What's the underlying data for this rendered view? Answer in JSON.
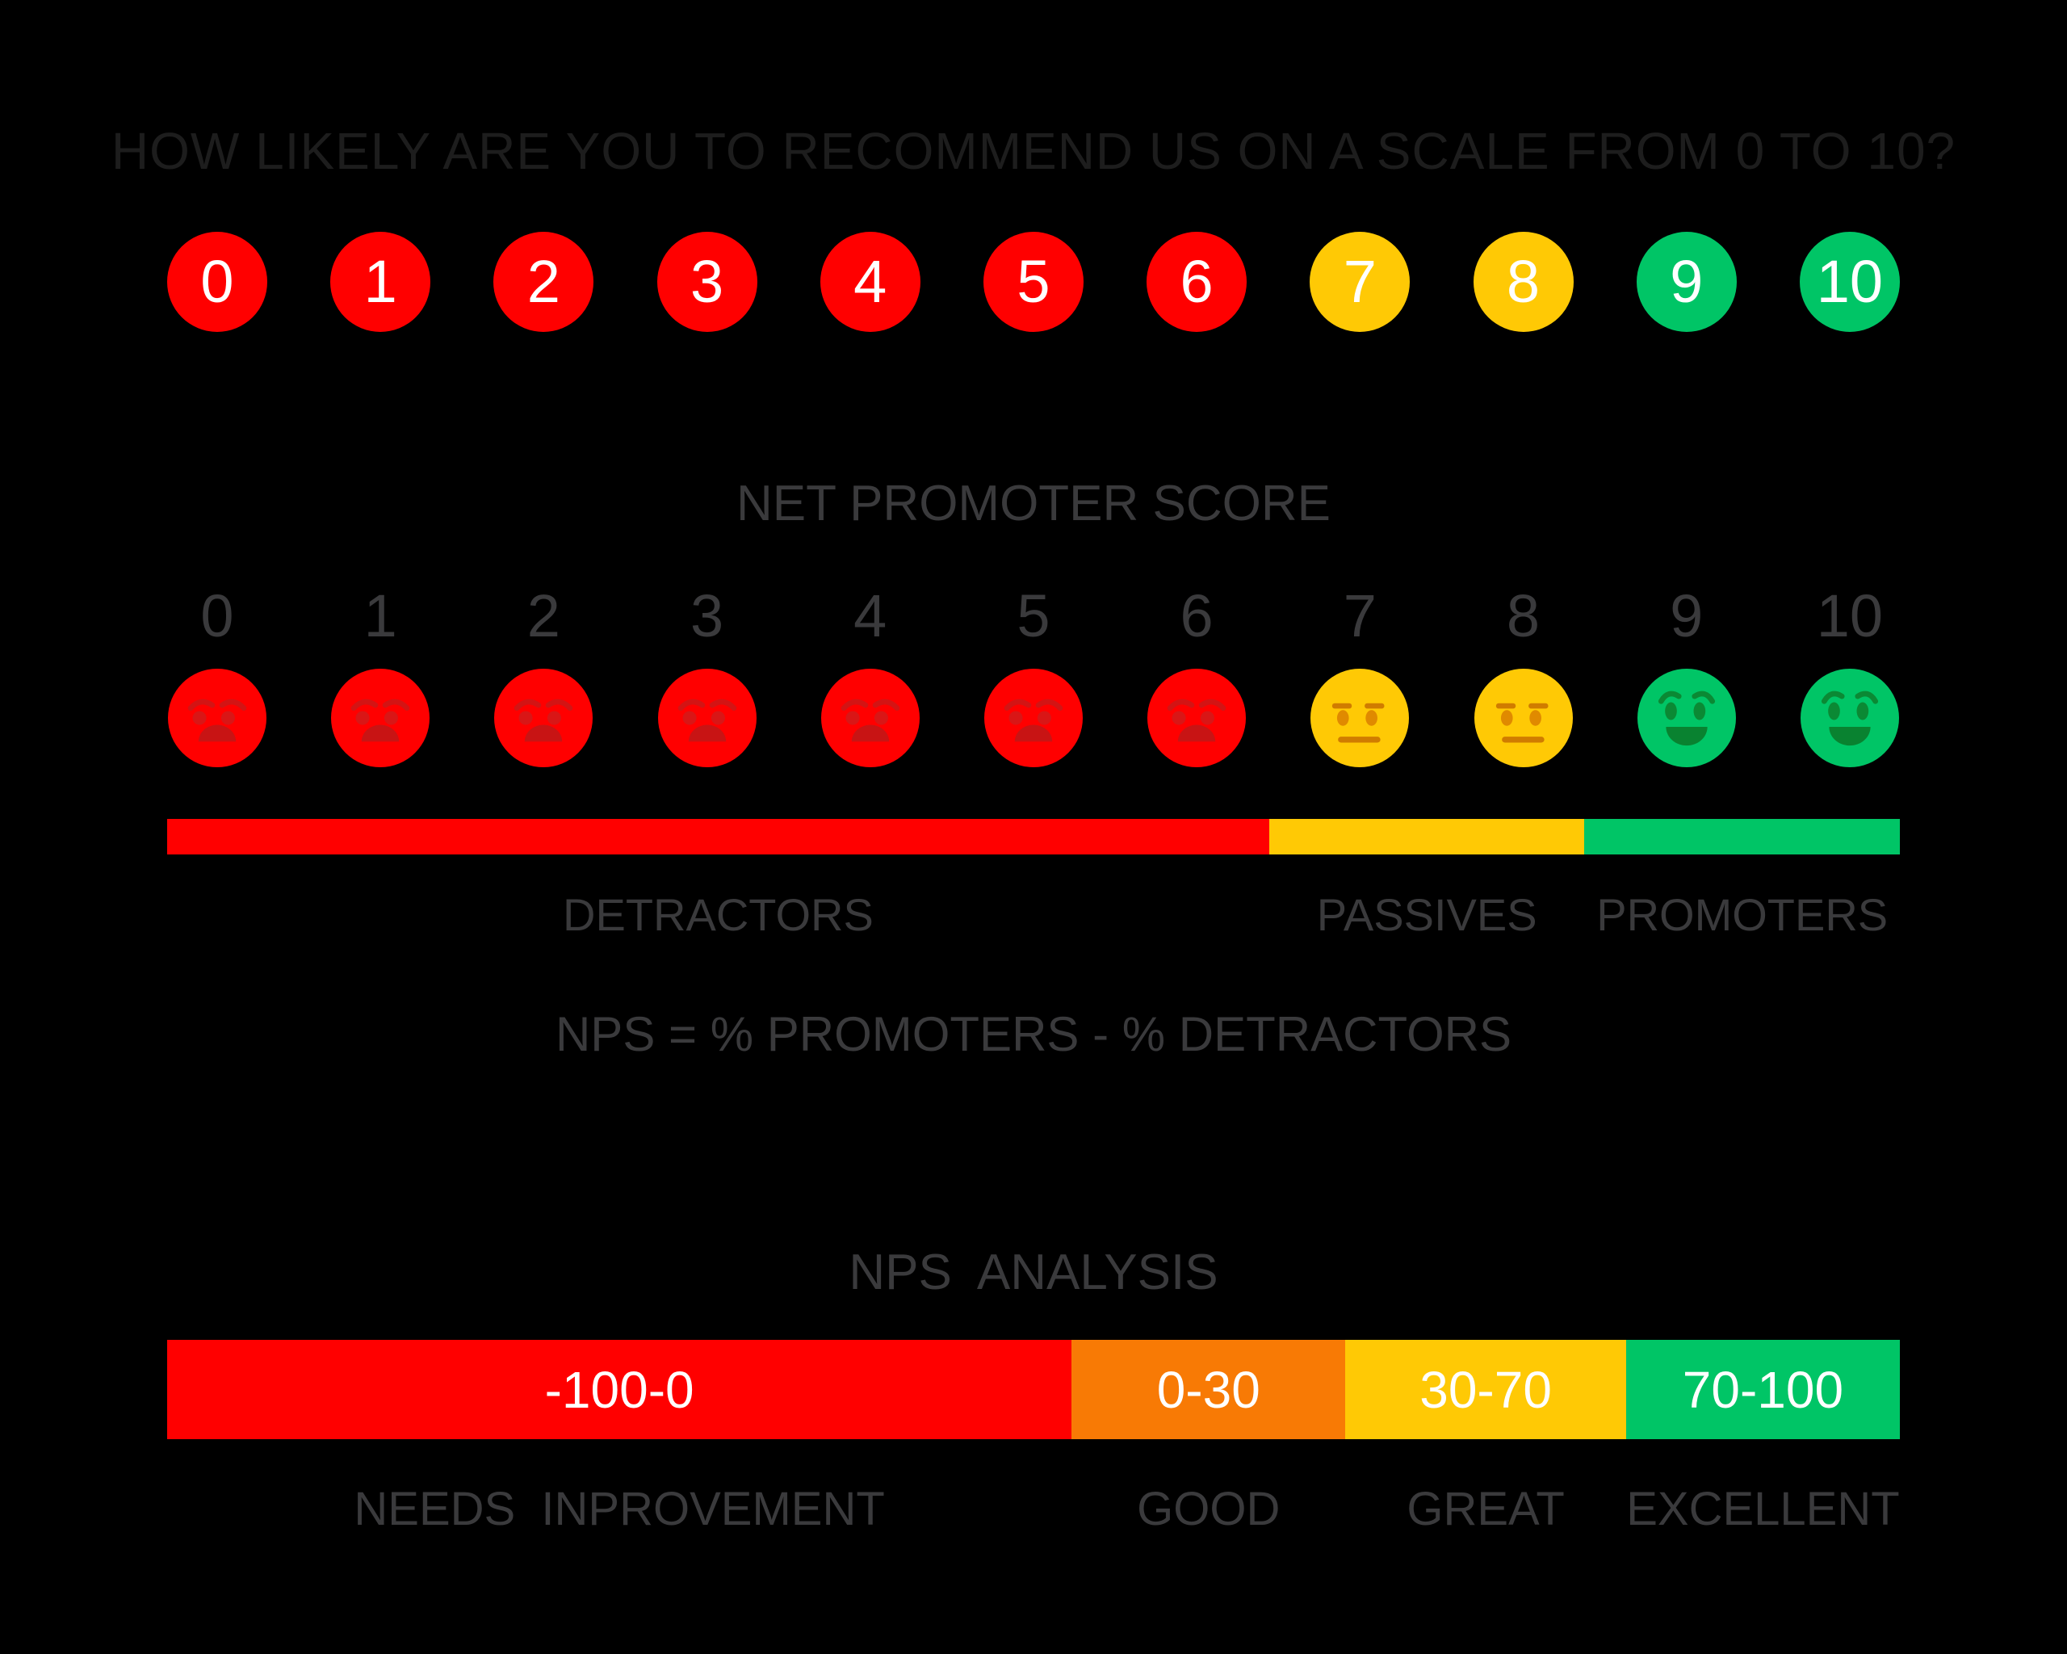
{
  "colors": {
    "background": "#000000",
    "title_text": "#1D1D1D",
    "gray_text": "#3A3A3C",
    "white_text": "#FFFFFF",
    "detractor": "#FF0000",
    "passive": "#FFC905",
    "promoter": "#00C566",
    "good_orange": "#F87A05"
  },
  "faces": {
    "detractor": {
      "expression": "angry",
      "skin": "#FF0000",
      "feature": "#D31414",
      "eye": "#D91616",
      "mouth": "#C81414"
    },
    "passive": {
      "expression": "neutral",
      "skin": "#FFC905",
      "feature": "#D07C00",
      "eye": "#E08A00",
      "mouth": "#D07C00"
    },
    "promoter": {
      "expression": "happy",
      "skin": "#00C566",
      "feature": "#0B8934",
      "eye": "#0B8934",
      "mouth": "#098230"
    }
  },
  "question": {
    "text": "HOW LIKELY ARE YOU TO RECOMMEND US ON A SCALE FROM 0 TO 10?"
  },
  "scale": {
    "items": [
      {
        "value": "0",
        "group": "detractor"
      },
      {
        "value": "1",
        "group": "detractor"
      },
      {
        "value": "2",
        "group": "detractor"
      },
      {
        "value": "3",
        "group": "detractor"
      },
      {
        "value": "4",
        "group": "detractor"
      },
      {
        "value": "5",
        "group": "detractor"
      },
      {
        "value": "6",
        "group": "detractor"
      },
      {
        "value": "7",
        "group": "passive"
      },
      {
        "value": "8",
        "group": "passive"
      },
      {
        "value": "9",
        "group": "promoter"
      },
      {
        "value": "10",
        "group": "promoter"
      }
    ]
  },
  "nps": {
    "heading": "NET PROMOTER SCORE",
    "band": {
      "segments": [
        {
          "label": "DETRACTORS",
          "color_key": "detractor",
          "width_pct": 63.6
        },
        {
          "label": "PASSIVES",
          "color_key": "passive",
          "width_pct": 18.2
        },
        {
          "label": "PROMOTERS",
          "color_key": "promoter",
          "width_pct": 18.2
        }
      ]
    },
    "formula": "NPS = % PROMOTERS - % DETRACTORS"
  },
  "analysis": {
    "heading": "NPS  ANALYSIS",
    "segments": [
      {
        "range": "-100-0",
        "label": "NEEDS  INPROVEMENT",
        "color_key": "detractor",
        "width_pct": 52.2
      },
      {
        "range": "0-30",
        "label": "GOOD",
        "color_key": "good_orange",
        "width_pct": 15.8
      },
      {
        "range": "30-70",
        "label": "GREAT",
        "color_key": "passive",
        "width_pct": 16.2
      },
      {
        "range": "70-100",
        "label": "EXCELLENT",
        "color_key": "promoter",
        "width_pct": 15.8
      }
    ]
  }
}
